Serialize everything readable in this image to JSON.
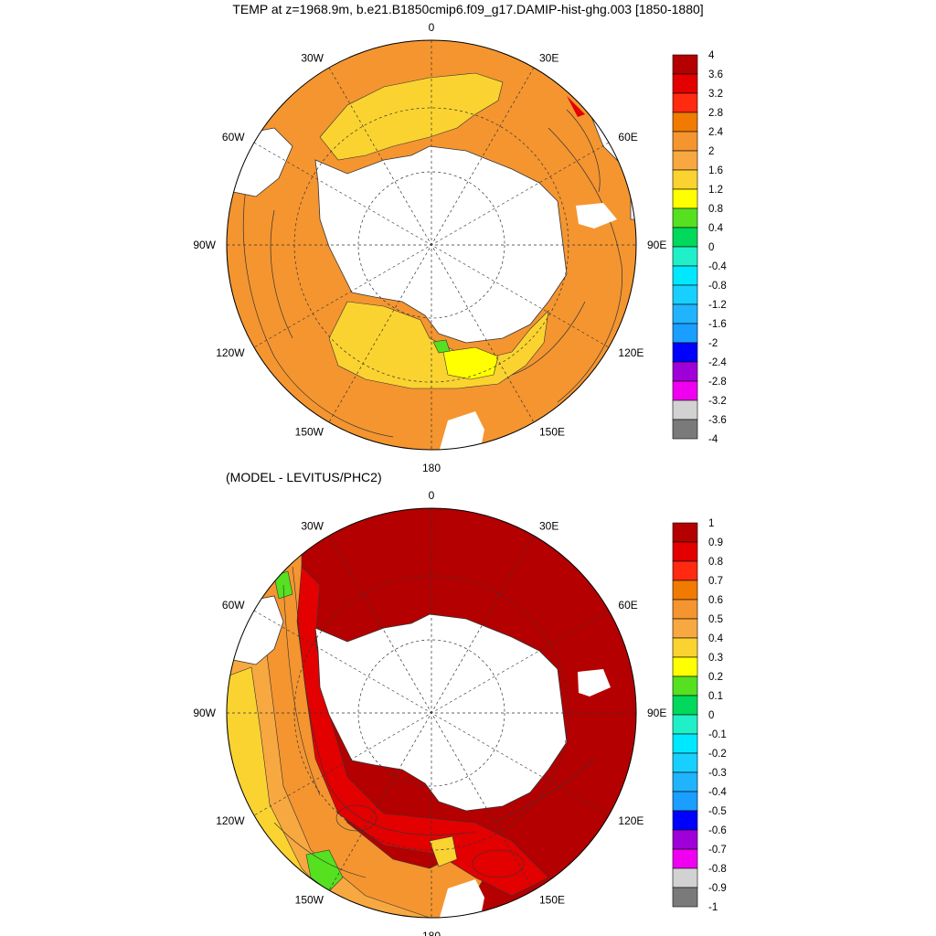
{
  "title": "TEMP at z=1968.9m, b.e21.B1850cmip6.f09_g17.DAMIP-hist-ghg.003 [1850-1880]",
  "subtitle": "(MODEL - LEVITUS/PHC2)",
  "longitude_labels": [
    "0",
    "30E",
    "60E",
    "90E",
    "120E",
    "150E",
    "180",
    "150W",
    "120W",
    "90W",
    "60W",
    "30W"
  ],
  "colorbar_top": {
    "levels": [
      "4",
      "3.6",
      "3.2",
      "2.8",
      "2.4",
      "2",
      "1.6",
      "1.2",
      "0.8",
      "0.4",
      "0",
      "-0.4",
      "-0.8",
      "-1.2",
      "-1.6",
      "-2",
      "-2.4",
      "-2.8",
      "-3.2",
      "-3.6",
      "-4"
    ],
    "colors": [
      "#b40000",
      "#e20000",
      "#ff2a10",
      "#f07b00",
      "#f49530",
      "#f8a840",
      "#fbd330",
      "#ffff00",
      "#55e020",
      "#00d95b",
      "#20f0c8",
      "#00e8ff",
      "#18d0ff",
      "#20b4ff",
      "#1a9eff",
      "#0000ff",
      "#a000d8",
      "#f000f0",
      "#d2d2d2",
      "#7a7a7a"
    ]
  },
  "colorbar_bottom": {
    "levels": [
      "1",
      "0.9",
      "0.8",
      "0.7",
      "0.6",
      "0.5",
      "0.4",
      "0.3",
      "0.2",
      "0.1",
      "0",
      "-0.1",
      "-0.2",
      "-0.3",
      "-0.4",
      "-0.5",
      "-0.6",
      "-0.7",
      "-0.8",
      "-0.9",
      "-1"
    ],
    "colors": [
      "#b40000",
      "#e20000",
      "#ff2a10",
      "#f07b00",
      "#f49530",
      "#f8a840",
      "#fbd330",
      "#ffff00",
      "#55e020",
      "#00d95b",
      "#20f0c8",
      "#00e8ff",
      "#18d0ff",
      "#20b4ff",
      "#1a9eff",
      "#0000ff",
      "#a000d8",
      "#f000f0",
      "#d2d2d2",
      "#7a7a7a"
    ]
  },
  "colors": {
    "top_main": "#f49530",
    "top_light": "#fbd330",
    "bottom_main": "#b40000",
    "bottom_red": "#e20000",
    "land": "#ffffff"
  }
}
